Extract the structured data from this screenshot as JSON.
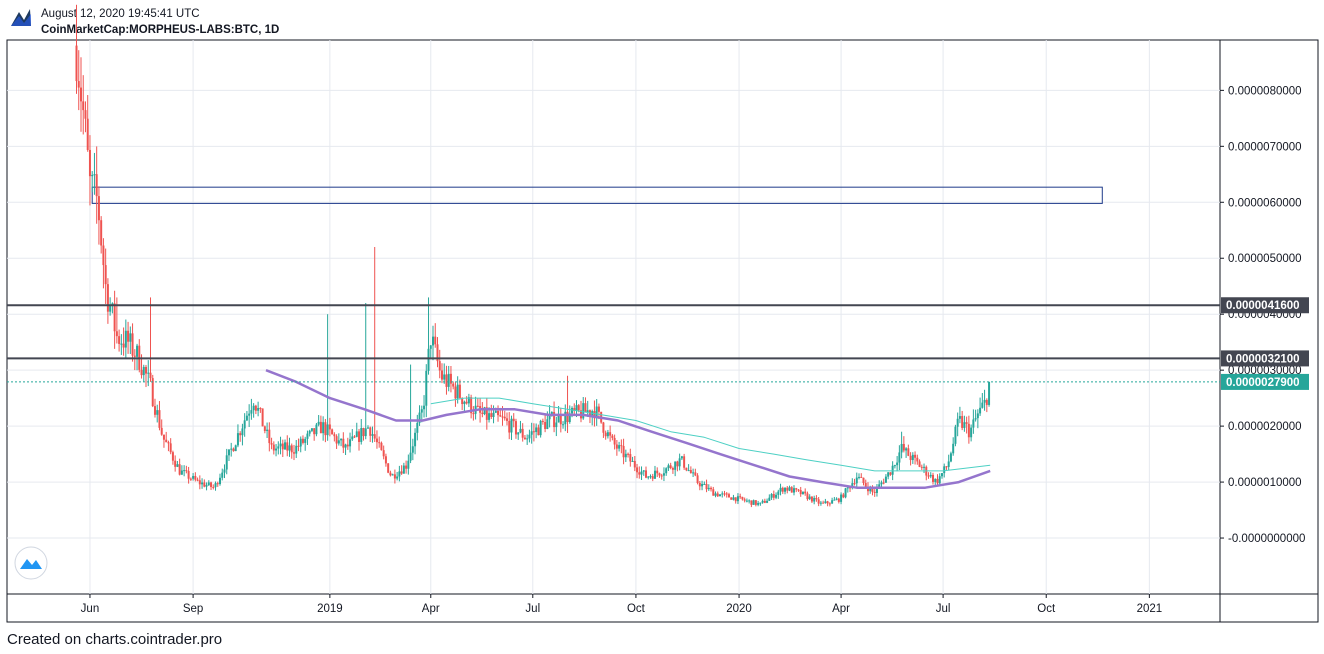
{
  "header": {
    "datetime": "August 12, 2020 19:45:41 UTC",
    "symbol": "CoinMarketCap:MORPHEUS-LABS:BTC, 1D"
  },
  "footer": {
    "text": "Created on charts.cointrader.pro"
  },
  "colors": {
    "up": "#26a69a",
    "down": "#ef5350",
    "ma_long": "#9575cd",
    "ma_short": "#4dd0c4",
    "line_level": "#434651",
    "current_price": "#26a69a",
    "rectangle": "#1e3a8a"
  },
  "chart_data": {
    "type": "candlestick",
    "x_axis": {
      "range": [
        "2018-03-19",
        "2021-03-05"
      ],
      "ticks": [
        {
          "date": "2018-06-01",
          "label": "Jun"
        },
        {
          "date": "2018-09-01",
          "label": "Sep"
        },
        {
          "date": "2019-01-01",
          "label": "2019"
        },
        {
          "date": "2019-04-01",
          "label": "Apr"
        },
        {
          "date": "2019-07-01",
          "label": "Jul"
        },
        {
          "date": "2019-10-01",
          "label": "Oct"
        },
        {
          "date": "2020-01-01",
          "label": "2020"
        },
        {
          "date": "2020-04-01",
          "label": "Apr"
        },
        {
          "date": "2020-07-01",
          "label": "Jul"
        },
        {
          "date": "2020-10-01",
          "label": "Oct"
        },
        {
          "date": "2021-01-01",
          "label": "2021"
        }
      ]
    },
    "y_axis": {
      "range": [
        -1e-06,
        8.9e-06
      ],
      "ticks": [
        {
          "value": 8e-06,
          "label": "0.0000080000"
        },
        {
          "value": 7e-06,
          "label": "0.0000070000"
        },
        {
          "value": 6e-06,
          "label": "0.0000060000"
        },
        {
          "value": 5e-06,
          "label": "0.0000050000"
        },
        {
          "value": 4e-06,
          "label": "0.0000040000"
        },
        {
          "value": 3e-06,
          "label": "0.0000030000"
        },
        {
          "value": 2e-06,
          "label": "0.0000020000"
        },
        {
          "value": 1e-06,
          "label": "0.0000010000"
        },
        {
          "value": 0.0,
          "label": "-0.0000000000"
        }
      ]
    },
    "grid": true,
    "horizontal_levels": [
      {
        "value": 4.16e-06,
        "label": "0.0000041600"
      },
      {
        "value": 3.21e-06,
        "label": "0.0000032100"
      }
    ],
    "current_price": {
      "value": 2.79e-06,
      "label": "0.0000027900"
    },
    "rectangle": {
      "from": "2018-06-03",
      "to": "2020-11-20",
      "low": 5.98e-06,
      "high": 6.27e-06
    },
    "price_path": [
      [
        "2018-05-20",
        8.8e-06
      ],
      [
        "2018-05-26",
        7.6e-06
      ],
      [
        "2018-06-01",
        6.3e-06
      ],
      [
        "2018-06-08",
        6e-06
      ],
      [
        "2018-06-15",
        4.5e-06
      ],
      [
        "2018-06-25",
        3.6e-06
      ],
      [
        "2018-07-05",
        3.5e-06
      ],
      [
        "2018-07-15",
        3.2e-06
      ],
      [
        "2018-07-25",
        2.7e-06
      ],
      [
        "2018-08-05",
        1.8e-06
      ],
      [
        "2018-08-20",
        1.2e-06
      ],
      [
        "2018-09-05",
        1e-06
      ],
      [
        "2018-09-20",
        9e-07
      ],
      [
        "2018-10-10",
        1.8e-06
      ],
      [
        "2018-10-25",
        2.5e-06
      ],
      [
        "2018-11-10",
        1.6e-06
      ],
      [
        "2018-12-01",
        1.6e-06
      ],
      [
        "2018-12-25",
        2e-06
      ],
      [
        "2019-01-15",
        1.6e-06
      ],
      [
        "2019-02-05",
        2e-06
      ],
      [
        "2019-02-25",
        1.1e-06
      ],
      [
        "2019-03-10",
        1.3e-06
      ],
      [
        "2019-03-25",
        2.3e-06
      ],
      [
        "2019-04-01",
        3.6e-06
      ],
      [
        "2019-04-10",
        2.9e-06
      ],
      [
        "2019-04-25",
        2.6e-06
      ],
      [
        "2019-05-15",
        2.2e-06
      ],
      [
        "2019-06-05",
        2.1e-06
      ],
      [
        "2019-06-25",
        1.8e-06
      ],
      [
        "2019-07-15",
        2.1e-06
      ],
      [
        "2019-08-05",
        2.2e-06
      ],
      [
        "2019-08-25",
        2.3e-06
      ],
      [
        "2019-09-10",
        1.7e-06
      ],
      [
        "2019-09-25",
        1.4e-06
      ],
      [
        "2019-10-10",
        1.1e-06
      ],
      [
        "2019-10-25",
        1.2e-06
      ],
      [
        "2019-11-10",
        1.4e-06
      ],
      [
        "2019-11-25",
        1e-06
      ],
      [
        "2019-12-10",
        8e-07
      ],
      [
        "2019-12-31",
        7e-07
      ],
      [
        "2020-01-20",
        6e-07
      ],
      [
        "2020-02-10",
        9e-07
      ],
      [
        "2020-02-25",
        8e-07
      ],
      [
        "2020-03-15",
        6e-07
      ],
      [
        "2020-03-31",
        7e-07
      ],
      [
        "2020-04-15",
        1.1e-06
      ],
      [
        "2020-04-30",
        8e-07
      ],
      [
        "2020-05-15",
        1.2e-06
      ],
      [
        "2020-05-25",
        1.6e-06
      ],
      [
        "2020-06-10",
        1.3e-06
      ],
      [
        "2020-06-25",
        1e-06
      ],
      [
        "2020-07-05",
        1.3e-06
      ],
      [
        "2020-07-15",
        2.1e-06
      ],
      [
        "2020-07-25",
        1.9e-06
      ],
      [
        "2020-08-01",
        2.2e-06
      ],
      [
        "2020-08-07",
        2.4e-06
      ],
      [
        "2020-08-12",
        2.79e-06
      ]
    ],
    "spikes": [
      [
        "2018-06-25",
        4.3e-06
      ],
      [
        "2018-07-26",
        4.3e-06
      ],
      [
        "2018-12-31",
        4e-06
      ],
      [
        "2019-02-10",
        5.2e-06
      ],
      [
        "2019-02-03",
        4.2e-06
      ],
      [
        "2019-03-30",
        4.3e-06
      ],
      [
        "2019-03-15",
        3.1e-06
      ],
      [
        "2020-05-25",
        1.9e-06
      ],
      [
        "2019-08-01",
        2.9e-06
      ]
    ],
    "moving_averages": [
      {
        "color_key": "ma_long",
        "points": [
          [
            "2018-11-05",
            3e-06
          ],
          [
            "2018-12-01",
            2.8e-06
          ],
          [
            "2019-01-01",
            2.5e-06
          ],
          [
            "2019-02-01",
            2.3e-06
          ],
          [
            "2019-03-01",
            2.1e-06
          ],
          [
            "2019-03-25",
            2.1e-06
          ],
          [
            "2019-04-15",
            2.2e-06
          ],
          [
            "2019-05-15",
            2.3e-06
          ],
          [
            "2019-06-15",
            2.3e-06
          ],
          [
            "2019-07-15",
            2.2e-06
          ],
          [
            "2019-08-15",
            2.2e-06
          ],
          [
            "2019-09-15",
            2.1e-06
          ],
          [
            "2019-10-15",
            1.9e-06
          ],
          [
            "2019-11-15",
            1.7e-06
          ],
          [
            "2019-12-15",
            1.5e-06
          ],
          [
            "2020-01-15",
            1.3e-06
          ],
          [
            "2020-02-15",
            1.1e-06
          ],
          [
            "2020-03-15",
            1e-06
          ],
          [
            "2020-04-15",
            9e-07
          ],
          [
            "2020-05-15",
            9e-07
          ],
          [
            "2020-06-15",
            9e-07
          ],
          [
            "2020-07-15",
            1e-06
          ],
          [
            "2020-08-12",
            1.2e-06
          ]
        ]
      },
      {
        "color_key": "ma_short",
        "points": [
          [
            "2019-04-01",
            2.4e-06
          ],
          [
            "2019-05-01",
            2.5e-06
          ],
          [
            "2019-06-01",
            2.5e-06
          ],
          [
            "2019-07-01",
            2.4e-06
          ],
          [
            "2019-08-01",
            2.3e-06
          ],
          [
            "2019-09-01",
            2.2e-06
          ],
          [
            "2019-10-01",
            2.1e-06
          ],
          [
            "2019-11-01",
            1.9e-06
          ],
          [
            "2019-12-01",
            1.8e-06
          ],
          [
            "2020-01-01",
            1.6e-06
          ],
          [
            "2020-02-01",
            1.5e-06
          ],
          [
            "2020-03-01",
            1.4e-06
          ],
          [
            "2020-04-01",
            1.3e-06
          ],
          [
            "2020-05-01",
            1.2e-06
          ],
          [
            "2020-06-01",
            1.2e-06
          ],
          [
            "2020-07-01",
            1.2e-06
          ],
          [
            "2020-08-12",
            1.3e-06
          ]
        ]
      }
    ]
  }
}
